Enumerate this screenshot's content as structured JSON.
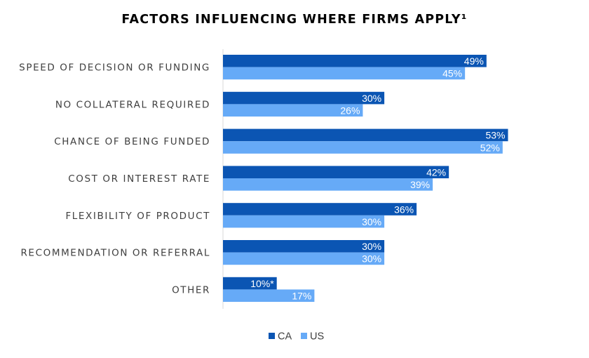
{
  "chart_data": {
    "type": "bar",
    "orientation": "horizontal",
    "title": "FACTORS INFLUENCING WHERE FIRMS APPLY¹",
    "categories": [
      "SPEED OF DECISION OR FUNDING",
      "NO COLLATERAL REQUIRED",
      "CHANCE OF BEING FUNDED",
      "COST OR INTEREST RATE",
      "FLEXIBILITY OF PRODUCT",
      "RECOMMENDATION OR REFERRAL",
      "OTHER"
    ],
    "series": [
      {
        "name": "CA",
        "color": "#0b55b3",
        "values": [
          49,
          30,
          53,
          42,
          36,
          30,
          10
        ],
        "labels": [
          "49%",
          "30%",
          "53%",
          "42%",
          "36%",
          "30%",
          "10%*"
        ]
      },
      {
        "name": "US",
        "color": "#66aaf7",
        "values": [
          45,
          26,
          52,
          39,
          30,
          30,
          17
        ],
        "labels": [
          "45%",
          "26%",
          "52%",
          "39%",
          "30%",
          "30%",
          "17%"
        ]
      }
    ],
    "xlim": [
      0,
      63
    ],
    "grid": false,
    "legend_position": "bottom"
  }
}
